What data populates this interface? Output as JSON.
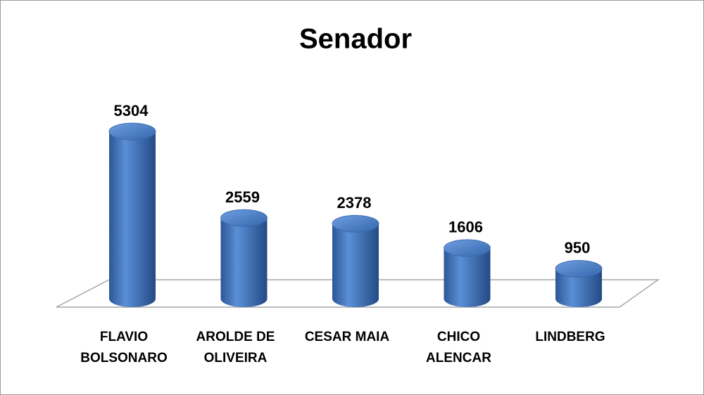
{
  "chart_data": {
    "type": "bar3d",
    "title": "Senador",
    "categories": [
      "FLAVIO BOLSONARO",
      "AROLDE DE OLIVEIRA",
      "CESAR MAIA",
      "CHICO ALENCAR",
      "LINDBERG"
    ],
    "values": [
      5304,
      2559,
      2378,
      1606,
      950
    ],
    "color": "#3f6fb5"
  }
}
